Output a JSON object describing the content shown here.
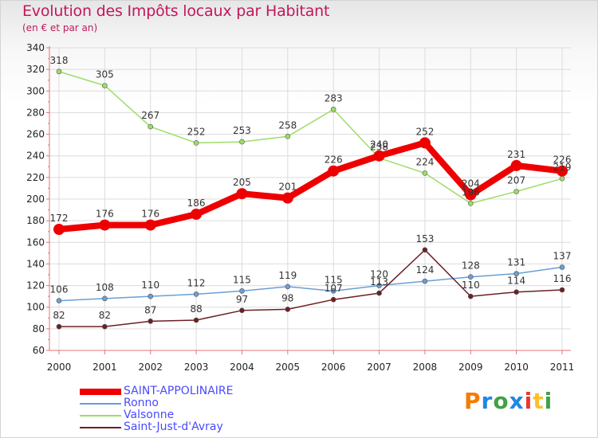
{
  "title": "Evolution des Impôts locaux par Habitant",
  "subtitle": "(en € et par an)",
  "logo": {
    "text": "Proxiti",
    "letter_colors": [
      "#f57c00",
      "#1e88e5",
      "#43a047",
      "#1e88e5",
      "#e53935",
      "#fbc02d",
      "#43a047"
    ]
  },
  "chart_data": {
    "type": "line",
    "x": [
      "2000",
      "2001",
      "2002",
      "2003",
      "2004",
      "2005",
      "2006",
      "2007",
      "2008",
      "2009",
      "2010",
      "2011"
    ],
    "ylim": [
      60,
      340
    ],
    "yticks": [
      "60",
      "80",
      "100",
      "120",
      "140",
      "160",
      "180",
      "200",
      "220",
      "240",
      "260",
      "280",
      "300",
      "320",
      "340"
    ],
    "grid": true,
    "legend_position": "bottom-left",
    "series": [
      {
        "name": "SAINT-APPOLINAIRE",
        "color": "#ee0000",
        "values": [
          172,
          176,
          176,
          186,
          205,
          201,
          226,
          240,
          252,
          204,
          231,
          226
        ],
        "labels": [
          "172",
          "176",
          "176",
          "186",
          "205",
          "201",
          "226",
          "240",
          "252",
          "204",
          "231",
          "226"
        ]
      },
      {
        "name": "Ronno",
        "color": "#6a9fd4",
        "values": [
          106,
          108,
          110,
          112,
          115,
          119,
          115,
          120,
          124,
          128,
          131,
          137
        ],
        "labels": [
          "106",
          "108",
          "110",
          "112",
          "115",
          "119",
          "115",
          "120",
          "124",
          "128",
          "131",
          "137"
        ]
      },
      {
        "name": "Valsonne",
        "color": "#9edc6a",
        "values": [
          318,
          305,
          267,
          252,
          253,
          258,
          283,
          238,
          224,
          196,
          207,
          219
        ],
        "labels": [
          "318",
          "305",
          "267",
          "252",
          "253",
          "258",
          "283",
          "238",
          "224",
          "196",
          "207",
          "219"
        ]
      },
      {
        "name": "Saint-Just-d'Avray",
        "color": "#6b2024",
        "values": [
          82,
          82,
          87,
          88,
          97,
          98,
          107,
          113,
          153,
          110,
          114,
          116
        ],
        "labels": [
          "82",
          "82",
          "87",
          "88",
          "97",
          "98",
          "107",
          "113",
          "153",
          "110",
          "114",
          "116"
        ]
      }
    ]
  }
}
